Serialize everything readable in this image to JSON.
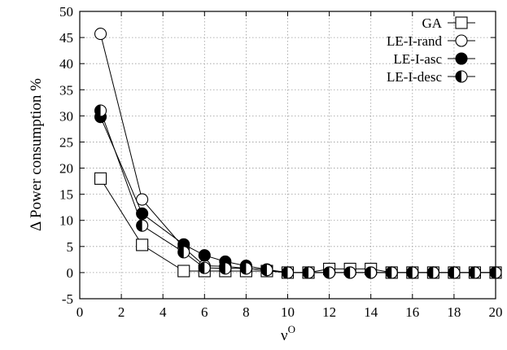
{
  "chart_data": {
    "type": "line",
    "xlabel_base": "ν",
    "xlabel_sup": "O",
    "ylabel": "Δ Power consumption %",
    "xlim": [
      0,
      20
    ],
    "ylim": [
      -5,
      50
    ],
    "xticks": [
      0,
      2,
      4,
      6,
      8,
      10,
      12,
      14,
      16,
      18,
      20
    ],
    "yticks": [
      -5,
      0,
      5,
      10,
      15,
      20,
      25,
      30,
      35,
      40,
      45,
      50
    ],
    "grid": true,
    "legend_position": "top-right",
    "x": [
      1,
      3,
      5,
      6,
      7,
      8,
      9,
      10,
      11,
      12,
      13,
      14,
      15,
      16,
      17,
      18,
      19,
      20
    ],
    "series": [
      {
        "name": "GA",
        "marker": "square-open",
        "values": [
          18,
          5.3,
          0.3,
          0.3,
          0.3,
          0.3,
          0.3,
          0,
          0,
          0.7,
          0.7,
          0.7,
          0,
          0,
          0,
          0,
          0,
          0
        ]
      },
      {
        "name": "LE-I-rand",
        "marker": "circle-open",
        "values": [
          45.7,
          14,
          4.8,
          1.3,
          1.2,
          0.8,
          0.5,
          0,
          0,
          0,
          0,
          0,
          0,
          0,
          0,
          0,
          0,
          0
        ]
      },
      {
        "name": "LE-I-asc",
        "marker": "circle-filled",
        "values": [
          29.8,
          11.3,
          5.4,
          3.3,
          2.1,
          1.3,
          0.6,
          0,
          0,
          0,
          0,
          0,
          0,
          0,
          0,
          0,
          0,
          0
        ]
      },
      {
        "name": "LE-I-desc",
        "marker": "circle-half",
        "values": [
          31,
          9,
          3.9,
          0.9,
          0.8,
          0.8,
          0.5,
          0,
          0,
          0,
          0,
          0,
          0,
          0,
          0,
          0,
          0,
          0
        ]
      }
    ]
  }
}
